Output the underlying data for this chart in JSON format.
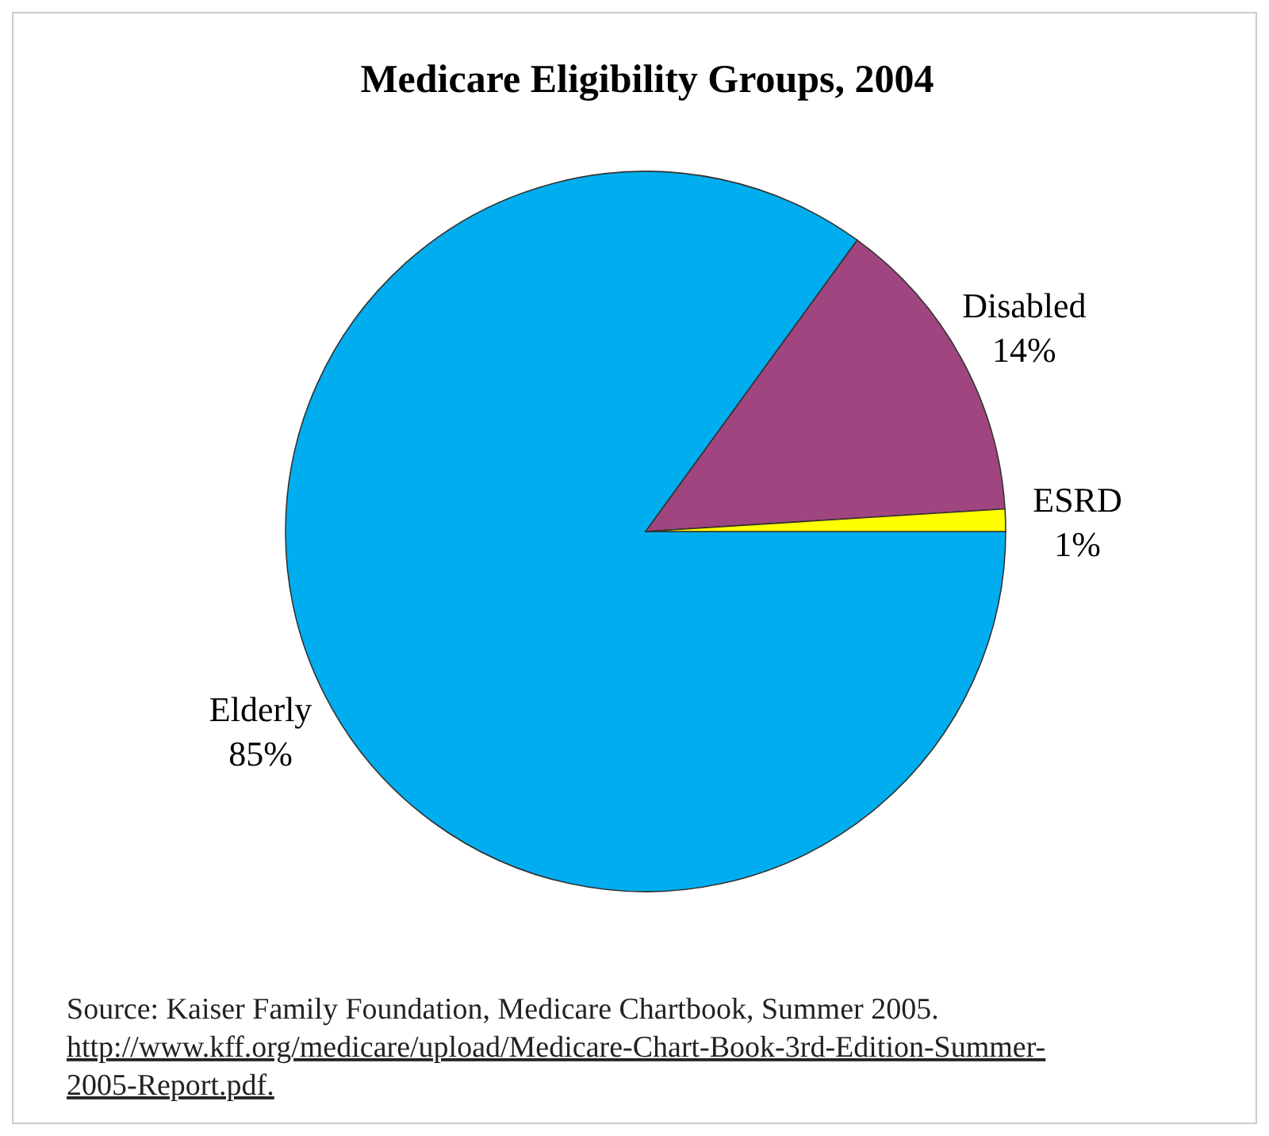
{
  "chart_data": {
    "type": "pie",
    "title": "Medicare Eligibility Groups, 2004",
    "categories": [
      "Elderly",
      "Disabled",
      "ESRD"
    ],
    "values": [
      85,
      14,
      1
    ],
    "colors": [
      "#00aeef",
      "#a0457f",
      "#ffff00"
    ],
    "value_labels": [
      "85%",
      "14%",
      "1%"
    ],
    "annotations": [
      "Source: Kaiser Family Foundation, Medicare Chartbook, Summer 2005.",
      "http://www.kff.org/medicare/upload/Medicare-Chart-Book-3rd-Edition-Summer-2005-Report.pdf."
    ]
  }
}
